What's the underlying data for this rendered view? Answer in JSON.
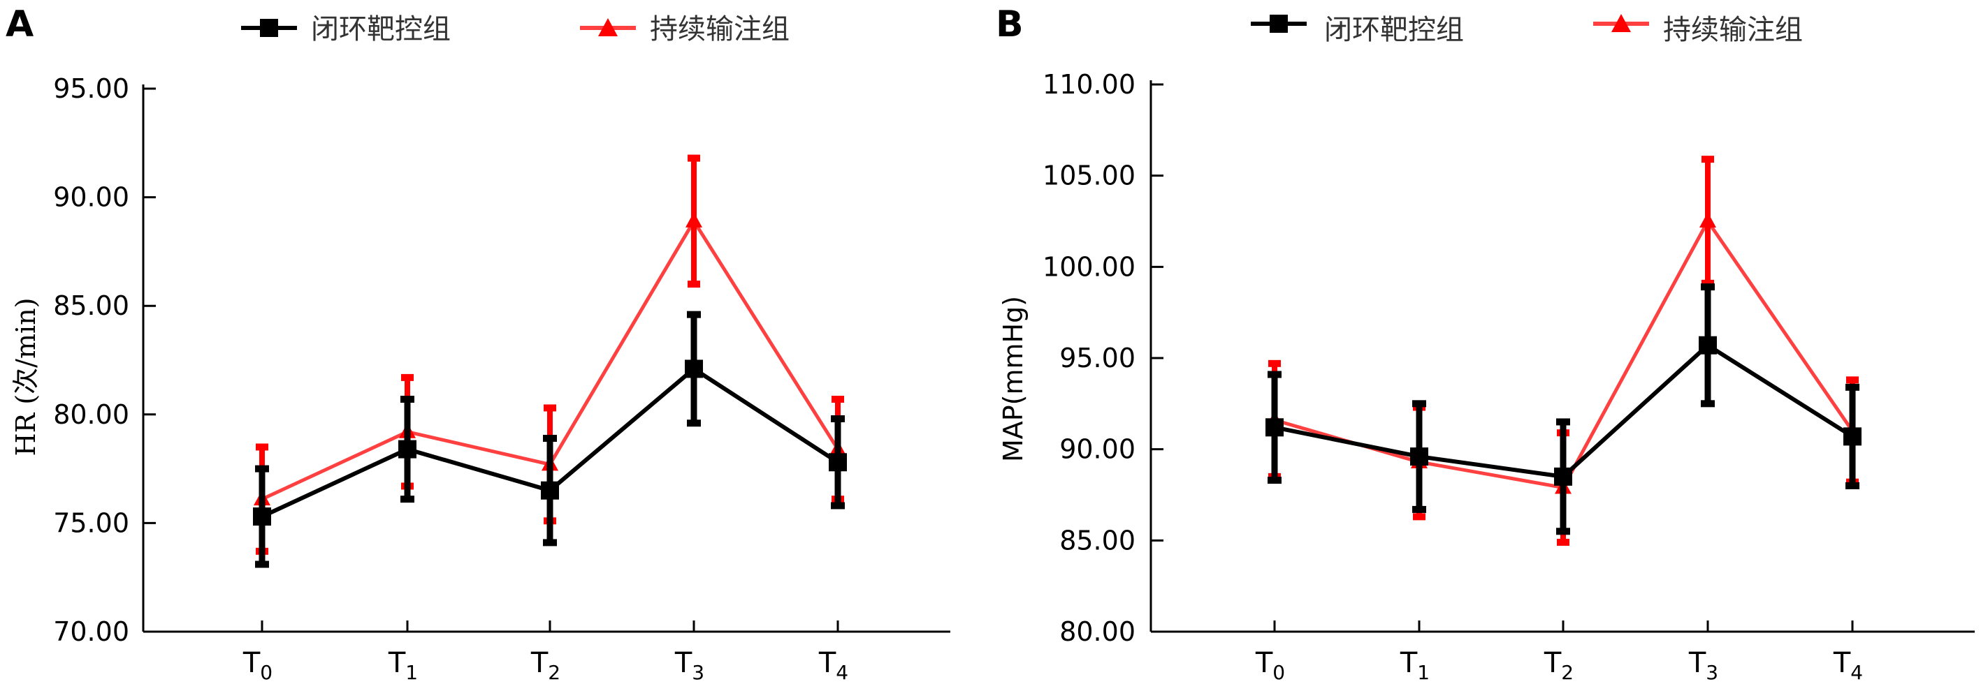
{
  "chart_data": [
    {
      "type": "line",
      "panel": "A",
      "ylabel": "HR (次/min)",
      "xlabel": "",
      "categories": [
        "T0",
        "T1",
        "T2",
        "T3",
        "T4"
      ],
      "category_labels": [
        {
          "base": "T",
          "sub": "0"
        },
        {
          "base": "T",
          "sub": "1"
        },
        {
          "base": "T",
          "sub": "2"
        },
        {
          "base": "T",
          "sub": "3"
        },
        {
          "base": "T",
          "sub": "4"
        }
      ],
      "ylim": [
        70,
        95
      ],
      "yticks": [
        "70.00",
        "75.00",
        "80.00",
        "85.00",
        "90.00",
        "95.00"
      ],
      "legend": [
        "闭环靶控组",
        "持续输注组"
      ],
      "series": [
        {
          "name": "持续输注组",
          "color": "#ff0000",
          "line_color": "#ff4040",
          "marker": "triangle",
          "values": [
            76.1,
            79.2,
            77.7,
            88.9,
            78.4
          ],
          "errors": [
            2.4,
            2.5,
            2.6,
            2.9,
            2.3
          ]
        },
        {
          "name": "闭环靶控组",
          "color": "#000000",
          "line_color": "#000000",
          "marker": "square",
          "values": [
            75.3,
            78.4,
            76.5,
            82.1,
            77.8
          ],
          "errors": [
            2.2,
            2.3,
            2.4,
            2.5,
            2.0
          ]
        }
      ]
    },
    {
      "type": "line",
      "panel": "B",
      "ylabel": "MAP(mmHg)",
      "xlabel": "",
      "categories": [
        "T0",
        "T1",
        "T2",
        "T3",
        "T4"
      ],
      "category_labels": [
        {
          "base": "T",
          "sub": "0"
        },
        {
          "base": "T",
          "sub": "1"
        },
        {
          "base": "T",
          "sub": "2"
        },
        {
          "base": "T",
          "sub": "3"
        },
        {
          "base": "T",
          "sub": "4"
        }
      ],
      "ylim": [
        80,
        110
      ],
      "yticks": [
        "80.00",
        "85.00",
        "90.00",
        "95.00",
        "100.00",
        "105.00",
        "110.00"
      ],
      "legend": [
        "闭环靶控组",
        "持续输注组"
      ],
      "series": [
        {
          "name": "持续输注组",
          "color": "#ff0000",
          "line_color": "#ff4040",
          "marker": "triangle",
          "values": [
            91.6,
            89.3,
            87.9,
            102.5,
            91.0
          ],
          "errors": [
            3.1,
            3.0,
            3.0,
            3.4,
            2.8
          ]
        },
        {
          "name": "闭环靶控组",
          "color": "#000000",
          "line_color": "#000000",
          "marker": "square",
          "values": [
            91.2,
            89.6,
            88.5,
            95.7,
            90.7
          ],
          "errors": [
            2.9,
            2.9,
            3.0,
            3.2,
            2.7
          ]
        }
      ]
    }
  ]
}
